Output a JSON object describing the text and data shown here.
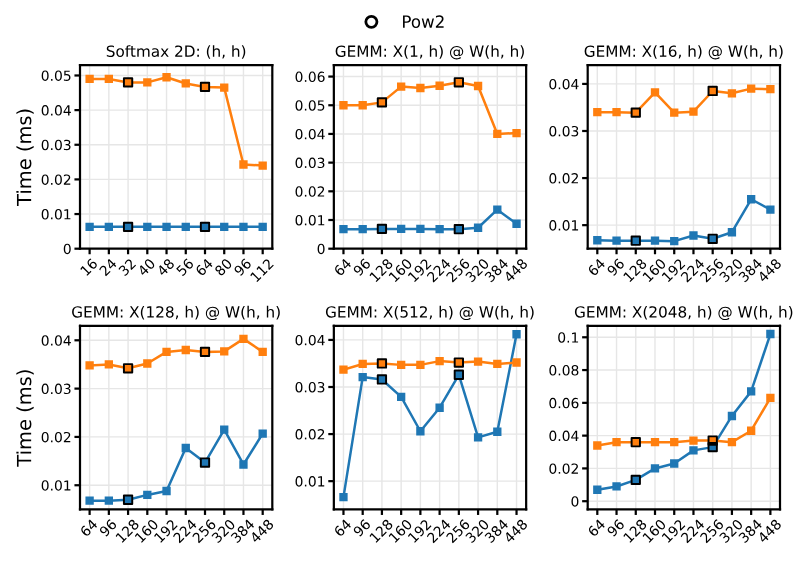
{
  "chart_data": [
    {
      "type": "line",
      "title": "Softmax 2D: (h, h)",
      "ylabel": "Time (ms)",
      "categories": [
        "16",
        "24",
        "32",
        "40",
        "48",
        "56",
        "64",
        "80",
        "96",
        "112"
      ],
      "ylim": [
        0,
        0.053
      ],
      "yticks": [
        0,
        0.01,
        0.02,
        0.03,
        0.04,
        0.05
      ],
      "grid": true,
      "marker": "square",
      "legend": "top",
      "series": [
        {
          "color": "#1f77b4",
          "values": [
            0.0063,
            0.0063,
            0.0063,
            0.0063,
            0.0063,
            0.0063,
            0.0063,
            0.0063,
            0.0063,
            0.0063
          ]
        },
        {
          "color": "#ff7f0e",
          "values": [
            0.049,
            0.049,
            0.048,
            0.048,
            0.0495,
            0.0477,
            0.0467,
            0.0465,
            0.0243,
            0.024
          ]
        },
        {
          "type": "scatter",
          "name": "Pow2",
          "color": "#000000",
          "x": [
            "32",
            "64",
            "32",
            "64"
          ],
          "values": [
            0.0063,
            0.0063,
            0.048,
            0.0467
          ]
        }
      ]
    },
    {
      "type": "line",
      "title": "GEMM: X(1, h) @ W(h, h)",
      "categories": [
        "64",
        "96",
        "128",
        "160",
        "192",
        "224",
        "256",
        "320",
        "384",
        "448"
      ],
      "ylim": [
        0,
        0.064
      ],
      "yticks": [
        0,
        0.01,
        0.02,
        0.03,
        0.04,
        0.05,
        0.06
      ],
      "grid": true,
      "marker": "square",
      "series": [
        {
          "color": "#1f77b4",
          "values": [
            0.0068,
            0.0068,
            0.0069,
            0.0069,
            0.0069,
            0.0068,
            0.0068,
            0.0073,
            0.0136,
            0.0087
          ]
        },
        {
          "color": "#ff7f0e",
          "values": [
            0.05,
            0.05,
            0.051,
            0.0565,
            0.056,
            0.0568,
            0.058,
            0.0567,
            0.04,
            0.0403
          ]
        },
        {
          "type": "scatter",
          "name": "Pow2",
          "color": "#000000",
          "x": [
            "128",
            "256",
            "128",
            "256"
          ],
          "values": [
            0.0069,
            0.0068,
            0.051,
            0.058
          ]
        }
      ]
    },
    {
      "type": "line",
      "title": "GEMM: X(16, h) @ W(h, h)",
      "categories": [
        "64",
        "96",
        "128",
        "160",
        "192",
        "224",
        "256",
        "320",
        "384",
        "448"
      ],
      "ylim": [
        0.005,
        0.044
      ],
      "yticks": [
        0.01,
        0.02,
        0.03,
        0.04
      ],
      "grid": true,
      "marker": "square",
      "series": [
        {
          "color": "#1f77b4",
          "values": [
            0.0068,
            0.0067,
            0.0067,
            0.0067,
            0.0066,
            0.0078,
            0.0071,
            0.0085,
            0.0155,
            0.0133
          ]
        },
        {
          "color": "#ff7f0e",
          "values": [
            0.034,
            0.034,
            0.0339,
            0.0382,
            0.0339,
            0.0341,
            0.0385,
            0.038,
            0.039,
            0.0389
          ]
        },
        {
          "type": "scatter",
          "name": "Pow2",
          "color": "#000000",
          "x": [
            "128",
            "256",
            "128",
            "256"
          ],
          "values": [
            0.0067,
            0.0071,
            0.0339,
            0.0385
          ]
        }
      ]
    },
    {
      "type": "line",
      "title": "GEMM: X(128, h) @ W(h, h)",
      "ylabel": "Time (ms)",
      "categories": [
        "64",
        "96",
        "128",
        "160",
        "192",
        "224",
        "256",
        "320",
        "384",
        "448"
      ],
      "ylim": [
        0.005,
        0.043
      ],
      "yticks": [
        0.01,
        0.02,
        0.03,
        0.04
      ],
      "grid": true,
      "marker": "square",
      "series": [
        {
          "color": "#1f77b4",
          "values": [
            0.0068,
            0.0068,
            0.007,
            0.008,
            0.0088,
            0.0177,
            0.0147,
            0.0215,
            0.0143,
            0.0207
          ]
        },
        {
          "color": "#ff7f0e",
          "values": [
            0.0348,
            0.035,
            0.0342,
            0.0352,
            0.0376,
            0.038,
            0.0376,
            0.0377,
            0.0403,
            0.0376
          ]
        },
        {
          "type": "scatter",
          "name": "Pow2",
          "color": "#000000",
          "x": [
            "128",
            "256",
            "128",
            "256"
          ],
          "values": [
            0.007,
            0.0147,
            0.0342,
            0.0376
          ]
        }
      ]
    },
    {
      "type": "line",
      "title": "GEMM: X(512, h) @ W(h, h)",
      "categories": [
        "64",
        "96",
        "128",
        "160",
        "192",
        "224",
        "256",
        "320",
        "384",
        "448"
      ],
      "ylim": [
        0.004,
        0.043
      ],
      "yticks": [
        0.01,
        0.02,
        0.03,
        0.04
      ],
      "grid": true,
      "marker": "square",
      "series": [
        {
          "color": "#1f77b4",
          "values": [
            0.0066,
            0.0321,
            0.0316,
            0.0279,
            0.0206,
            0.0256,
            0.0326,
            0.0193,
            0.0205,
            0.0412
          ]
        },
        {
          "color": "#ff7f0e",
          "values": [
            0.0337,
            0.0349,
            0.035,
            0.0347,
            0.0347,
            0.0355,
            0.0352,
            0.0354,
            0.0349,
            0.0352
          ]
        },
        {
          "type": "scatter",
          "name": "Pow2",
          "color": "#000000",
          "x": [
            "128",
            "256",
            "128",
            "256"
          ],
          "values": [
            0.0316,
            0.0326,
            0.035,
            0.0352
          ]
        }
      ]
    },
    {
      "type": "line",
      "title": "GEMM: X(2048, h) @ W(h, h)",
      "categories": [
        "64",
        "96",
        "128",
        "160",
        "192",
        "224",
        "256",
        "320",
        "384",
        "448"
      ],
      "ylim": [
        -0.005,
        0.107
      ],
      "yticks": [
        0,
        0.02,
        0.04,
        0.06,
        0.08,
        0.1
      ],
      "grid": true,
      "marker": "square",
      "series": [
        {
          "color": "#1f77b4",
          "values": [
            0.007,
            0.009,
            0.013,
            0.02,
            0.023,
            0.031,
            0.033,
            0.052,
            0.067,
            0.102
          ]
        },
        {
          "color": "#ff7f0e",
          "values": [
            0.034,
            0.036,
            0.036,
            0.036,
            0.036,
            0.037,
            0.037,
            0.036,
            0.043,
            0.063
          ]
        },
        {
          "type": "scatter",
          "name": "Pow2",
          "color": "#000000",
          "x": [
            "128",
            "256",
            "128",
            "256"
          ],
          "values": [
            0.013,
            0.033,
            0.036,
            0.037
          ]
        }
      ]
    }
  ]
}
